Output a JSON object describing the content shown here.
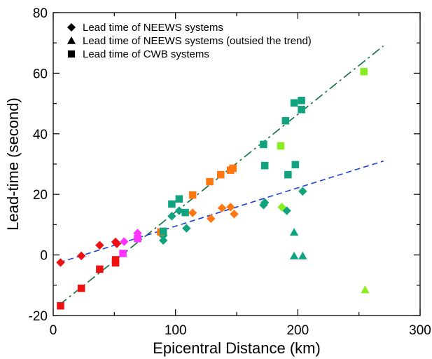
{
  "chart_data": {
    "type": "scatter",
    "xlabel": "Epicentral Distance (km)",
    "ylabel": "Lead-time (second)",
    "xlim": [
      0,
      300
    ],
    "ylim": [
      -20,
      80
    ],
    "xticks": [
      0,
      100,
      200,
      300
    ],
    "yticks": [
      -20,
      0,
      20,
      40,
      60,
      80
    ],
    "x_tick_labels": [
      "0",
      "100",
      "200",
      "300"
    ],
    "y_tick_labels": [
      "-20",
      "0",
      "20",
      "40",
      "60",
      "80"
    ],
    "grid": false,
    "legend_position": "top-left",
    "legend": [
      {
        "marker": "diamond",
        "label": "Lead time of NEEWS systems"
      },
      {
        "marker": "triangle",
        "label": "Lead time of NEEWS systems (outsied the trend)"
      },
      {
        "marker": "square",
        "label": "Lead time of CWB systems"
      }
    ],
    "colors": {
      "red": "#ee1111",
      "magenta": "#ff33ff",
      "orange": "#ff7711",
      "teal": "#11a37f",
      "lime": "#88ee22",
      "green_line": "#0e6e3c",
      "blue_line": "#1a3fd6"
    },
    "series": [
      {
        "marker": "diamond",
        "points": [
          {
            "x": 6,
            "y": -2.5,
            "color": "red"
          },
          {
            "x": 23,
            "y": -0.3,
            "color": "red"
          },
          {
            "x": 38,
            "y": 3.2,
            "color": "red"
          },
          {
            "x": 51,
            "y": 4.3,
            "color": "red"
          },
          {
            "x": 52,
            "y": 3.7,
            "color": "red"
          },
          {
            "x": 58,
            "y": 4.4,
            "color": "magenta"
          },
          {
            "x": 69,
            "y": 7.2,
            "color": "magenta"
          },
          {
            "x": 88,
            "y": 7.0,
            "color": "orange"
          },
          {
            "x": 114,
            "y": 13.9,
            "color": "orange"
          },
          {
            "x": 129,
            "y": 12.0,
            "color": "orange"
          },
          {
            "x": 138,
            "y": 15.5,
            "color": "orange"
          },
          {
            "x": 145,
            "y": 15.8,
            "color": "orange"
          },
          {
            "x": 148,
            "y": 13.5,
            "color": "orange"
          },
          {
            "x": 90,
            "y": 4.8,
            "color": "teal"
          },
          {
            "x": 90,
            "y": 6.4,
            "color": "teal"
          },
          {
            "x": 97,
            "y": 12.8,
            "color": "teal"
          },
          {
            "x": 103,
            "y": 14.6,
            "color": "teal"
          },
          {
            "x": 109,
            "y": 8.8,
            "color": "teal"
          },
          {
            "x": 172,
            "y": 16.5,
            "color": "teal"
          },
          {
            "x": 173,
            "y": 17.3,
            "color": "teal"
          },
          {
            "x": 191,
            "y": 14.6,
            "color": "teal"
          },
          {
            "x": 204,
            "y": 21.0,
            "color": "teal"
          },
          {
            "x": 187,
            "y": 15.8,
            "color": "lime"
          }
        ]
      },
      {
        "marker": "triangle",
        "points": [
          {
            "x": 197,
            "y": 7.5,
            "color": "teal"
          },
          {
            "x": 197,
            "y": -0.3,
            "color": "teal"
          },
          {
            "x": 204,
            "y": -0.3,
            "color": "teal"
          },
          {
            "x": 255,
            "y": -11.5,
            "color": "lime"
          }
        ]
      },
      {
        "marker": "square",
        "points": [
          {
            "x": 6,
            "y": -16.8,
            "color": "red"
          },
          {
            "x": 23,
            "y": -11.0,
            "color": "red"
          },
          {
            "x": 38,
            "y": -4.7,
            "color": "red"
          },
          {
            "x": 51,
            "y": -1.6,
            "color": "red"
          },
          {
            "x": 51,
            "y": -2.6,
            "color": "red"
          },
          {
            "x": 57,
            "y": 0.5,
            "color": "magenta"
          },
          {
            "x": 69,
            "y": 5.4,
            "color": "magenta"
          },
          {
            "x": 88,
            "y": 7.6,
            "color": "orange"
          },
          {
            "x": 114,
            "y": 19.8,
            "color": "orange"
          },
          {
            "x": 128,
            "y": 24.2,
            "color": "orange"
          },
          {
            "x": 137,
            "y": 26.5,
            "color": "orange"
          },
          {
            "x": 145,
            "y": 28.0,
            "color": "orange"
          },
          {
            "x": 147,
            "y": 28.6,
            "color": "orange"
          },
          {
            "x": 90,
            "y": 7.8,
            "color": "teal"
          },
          {
            "x": 97,
            "y": 16.8,
            "color": "teal"
          },
          {
            "x": 103,
            "y": 18.5,
            "color": "teal"
          },
          {
            "x": 108,
            "y": 14.0,
            "color": "teal"
          },
          {
            "x": 172,
            "y": 36.5,
            "color": "teal"
          },
          {
            "x": 173,
            "y": 29.5,
            "color": "teal"
          },
          {
            "x": 190,
            "y": 44.3,
            "color": "teal"
          },
          {
            "x": 192,
            "y": 26.5,
            "color": "teal"
          },
          {
            "x": 197,
            "y": 50.2,
            "color": "teal"
          },
          {
            "x": 198,
            "y": 29.8,
            "color": "teal"
          },
          {
            "x": 203,
            "y": 51.0,
            "color": "teal"
          },
          {
            "x": 203,
            "y": 48.0,
            "color": "teal"
          },
          {
            "x": 186,
            "y": 36.0,
            "color": "lime"
          },
          {
            "x": 254,
            "y": 60.5,
            "color": "lime"
          }
        ]
      }
    ],
    "trend_lines": [
      {
        "style": "dash-dot",
        "color": "green_line",
        "x": [
          5,
          270
        ],
        "y": [
          -16.5,
          69.0
        ]
      },
      {
        "style": "dash",
        "color": "blue_line",
        "x": [
          5,
          270
        ],
        "y": [
          -2.5,
          31.0
        ]
      }
    ]
  }
}
